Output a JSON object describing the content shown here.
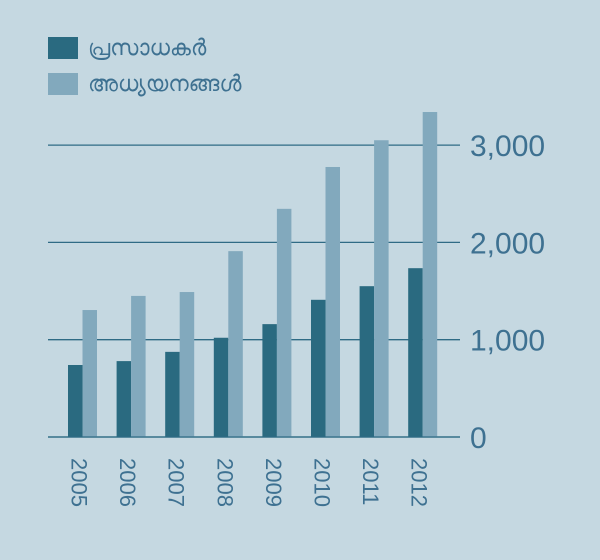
{
  "colors": {
    "background": "#c5d8e1",
    "series_dark": "#2a6a80",
    "series_light": "#82a9bd",
    "gridline": "#2f6b85",
    "text": "#3e7191"
  },
  "legend": {
    "items": [
      {
        "label": "പ്രസാധകർ",
        "color": "#2a6a80"
      },
      {
        "label": "അധ്യയനങ്ങൾ",
        "color": "#82a9bd"
      }
    ]
  },
  "chart_data": {
    "type": "bar",
    "title": "",
    "xlabel": "",
    "ylabel": "",
    "categories": [
      "2005",
      "2006",
      "2007",
      "2008",
      "2009",
      "2010",
      "2011",
      "2012"
    ],
    "series": [
      {
        "name": "പ്രസാധകർ",
        "values": [
          740,
          780,
          875,
          1020,
          1160,
          1410,
          1550,
          1735
        ]
      },
      {
        "name": "അധ്യയനങ്ങൾ",
        "values": [
          1305,
          1450,
          1490,
          1910,
          2345,
          2775,
          3050,
          3340
        ]
      }
    ],
    "ylim": [
      0,
      3400
    ],
    "yticks": [
      0,
      1000,
      2000,
      3000
    ],
    "ytick_labels": [
      "0",
      "1,000",
      "2,000",
      "3,000"
    ],
    "grid": true,
    "y_axis_position": "right",
    "legend_position": "top-left",
    "xtick_rotation": 90
  }
}
